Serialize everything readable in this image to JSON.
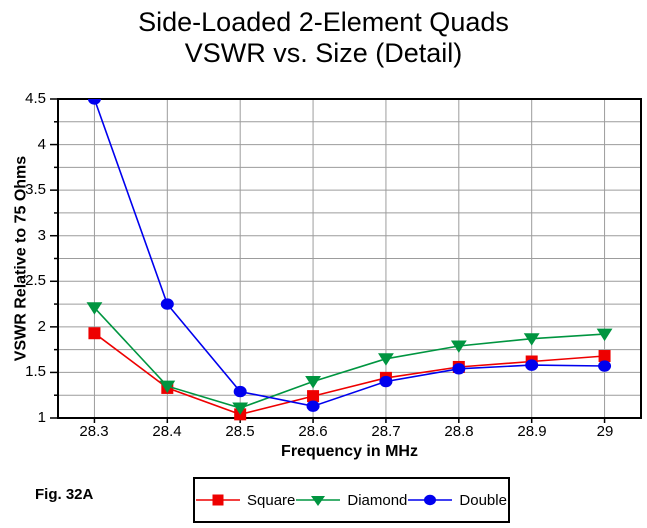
{
  "title_line1": "Side-Loaded 2-Element Quads",
  "title_line2": "VSWR vs. Size (Detail)",
  "fig_label": "Fig. 32A",
  "chart_data": {
    "type": "line",
    "title": "Side-Loaded 2-Element Quads VSWR vs. Size (Detail)",
    "xlabel": "Frequency in MHz",
    "ylabel": "VSWR Relative to 75 Ohms",
    "x": [
      28.3,
      28.4,
      28.5,
      28.6,
      28.7,
      28.8,
      28.9,
      29.0
    ],
    "x_tick_labels": [
      "28.3",
      "28.4",
      "28.5",
      "28.6",
      "28.7",
      "28.8",
      "28.9",
      "29"
    ],
    "xlim": [
      28.25,
      29.05
    ],
    "ylim": [
      1,
      4.5
    ],
    "y_major_ticks": [
      1,
      1.5,
      2,
      2.5,
      3,
      3.5,
      4,
      4.5
    ],
    "y_tick_labels": [
      "1",
      "1.5",
      "2",
      "2.5",
      "3",
      "3.5",
      "4",
      "4.5"
    ],
    "y_minor_step": 0.25,
    "grid": true,
    "gridline_color": "#9c9c9c",
    "frame_color": "#000000",
    "legend_position": "bottom",
    "series": [
      {
        "name": "Square",
        "marker": "square",
        "color": "#ee0000",
        "values": [
          1.93,
          1.33,
          1.04,
          1.24,
          1.44,
          1.56,
          1.62,
          1.68
        ]
      },
      {
        "name": "Diamond",
        "marker": "triangle-down",
        "color": "#009540",
        "values": [
          2.21,
          1.35,
          1.11,
          1.4,
          1.65,
          1.79,
          1.87,
          1.92
        ]
      },
      {
        "name": "Double",
        "marker": "circle",
        "color": "#0000ee",
        "values": [
          4.5,
          2.25,
          1.29,
          1.13,
          1.4,
          1.54,
          1.58,
          1.57
        ]
      }
    ]
  }
}
